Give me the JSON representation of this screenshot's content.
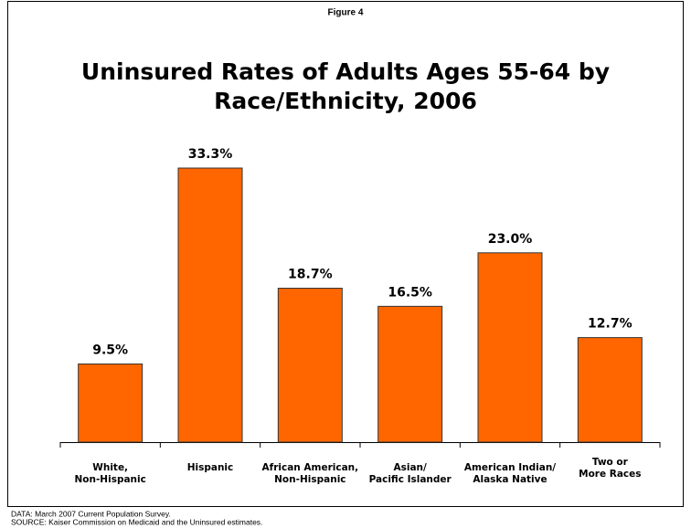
{
  "chart_data": {
    "type": "bar",
    "figure_label": "Figure 4",
    "title": "Uninsured Rates of Adults Ages 55-64 by Race/Ethnicity, 2006",
    "categories": [
      "White,\nNon-Hispanic",
      "Hispanic",
      "African American,\nNon-Hispanic",
      "Asian/\nPacific Islander",
      "American Indian/\nAlaska Native",
      "Two or\nMore Races"
    ],
    "values": [
      9.5,
      33.3,
      18.7,
      16.5,
      23.0,
      12.7
    ],
    "value_labels": [
      "9.5%",
      "33.3%",
      "18.7%",
      "16.5%",
      "23.0%",
      "12.7%"
    ],
    "color": "#ff6600",
    "notes": [
      "DATA: March 2007 Current Population Survey.",
      "SOURCE: Kaiser Commission on Medicaid and the Uninsured estimates."
    ]
  }
}
